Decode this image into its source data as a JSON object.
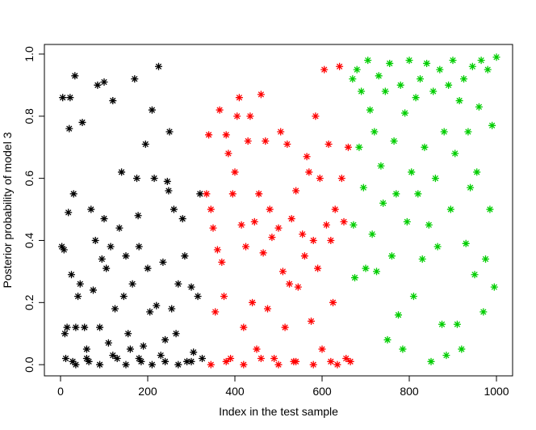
{
  "chart_data": {
    "type": "scatter",
    "x_label": "Index in the test sample",
    "y_label": "Posterior probability of model 3",
    "xlim": [
      -37,
      1037
    ],
    "ylim": [
      -0.036,
      1.031
    ],
    "xticks": [
      0,
      200,
      400,
      600,
      800,
      1000
    ],
    "yticks": [
      {
        "value": 0,
        "label": "0.0"
      },
      0.2,
      0.4,
      0.6,
      0.8,
      {
        "value": 1,
        "label": "1.0"
      }
    ],
    "series": [
      {
        "color": "#000000",
        "x": [
          3,
          5,
          8,
          10,
          12,
          15,
          18,
          20,
          22,
          25,
          28,
          30,
          33,
          35,
          40,
          45,
          50,
          55,
          60,
          65,
          70,
          75,
          80,
          85,
          90,
          95,
          100,
          100,
          105,
          110,
          115,
          120,
          125,
          130,
          135,
          140,
          145,
          150,
          155,
          160,
          165,
          170,
          175,
          178,
          180,
          185,
          190,
          195,
          200,
          205,
          210,
          215,
          220,
          225,
          230,
          235,
          240,
          245,
          248,
          250,
          255,
          260,
          265,
          270,
          280,
          285,
          290,
          300,
          305,
          315,
          320,
          325,
          35,
          60,
          90,
          120,
          150,
          180,
          210,
          240,
          270,
          300
        ],
        "y": [
          0.38,
          0.86,
          0.37,
          0.1,
          0.02,
          0.12,
          0.49,
          0.76,
          0.86,
          0.29,
          0.01,
          0.55,
          0.93,
          0.12,
          0.22,
          0.26,
          0.78,
          0.12,
          0.05,
          0.01,
          0.5,
          0.24,
          0.4,
          0.9,
          0.12,
          0.34,
          0.91,
          0.47,
          0.31,
          0.07,
          0.38,
          0.85,
          0.18,
          0.02,
          0.44,
          0.62,
          0.22,
          0.35,
          0.1,
          0.05,
          0.26,
          0.92,
          0.6,
          0.48,
          0.38,
          0.01,
          0.06,
          0.71,
          0.31,
          0.17,
          0.82,
          0.6,
          0.19,
          0.96,
          0.03,
          0.33,
          0.08,
          0.59,
          0.56,
          0.75,
          0.18,
          0.5,
          0.1,
          0.26,
          0.47,
          0.35,
          0.01,
          0.25,
          0.04,
          0.22,
          0.55,
          0.02,
          0.0,
          0.02,
          0.0,
          0.03,
          0.0,
          0.02,
          0.0,
          0.01,
          0.0,
          0.01
        ]
      },
      {
        "color": "#ff0000",
        "x": [
          335,
          340,
          345,
          350,
          355,
          360,
          365,
          370,
          375,
          380,
          385,
          390,
          395,
          400,
          405,
          410,
          415,
          420,
          425,
          430,
          435,
          440,
          445,
          450,
          455,
          460,
          465,
          470,
          475,
          480,
          485,
          490,
          500,
          505,
          510,
          515,
          520,
          525,
          530,
          535,
          540,
          545,
          555,
          560,
          565,
          570,
          575,
          580,
          585,
          590,
          595,
          600,
          605,
          610,
          615,
          620,
          625,
          630,
          635,
          640,
          645,
          650,
          655,
          660,
          665,
          345,
          380,
          420,
          460,
          500,
          540,
          580,
          620
        ],
        "y": [
          0.55,
          0.74,
          0.5,
          0.44,
          0.17,
          0.37,
          0.82,
          0.33,
          0.22,
          0.74,
          0.68,
          0.02,
          0.55,
          0.62,
          0.8,
          0.86,
          0.45,
          0.12,
          0.38,
          0.72,
          0.8,
          0.2,
          0.46,
          0.05,
          0.55,
          0.87,
          0.36,
          0.72,
          0.18,
          0.5,
          0.41,
          0.02,
          0.44,
          0.75,
          0.3,
          0.12,
          0.71,
          0.26,
          0.47,
          0.01,
          0.56,
          0.25,
          0.42,
          0.35,
          0.67,
          0.62,
          0.14,
          0.4,
          0.8,
          0.31,
          0.6,
          0.05,
          0.95,
          0.45,
          0.71,
          0.4,
          0.2,
          0.5,
          0.0,
          0.96,
          0.6,
          0.46,
          0.02,
          0.7,
          0.01,
          0.0,
          0.01,
          0.0,
          0.02,
          0.0,
          0.01,
          0.0,
          0.01
        ]
      },
      {
        "color": "#00cd00",
        "x": [
          670,
          672,
          675,
          680,
          685,
          690,
          695,
          700,
          705,
          710,
          715,
          720,
          725,
          730,
          735,
          740,
          745,
          750,
          755,
          760,
          765,
          770,
          775,
          780,
          785,
          790,
          795,
          800,
          805,
          810,
          815,
          820,
          825,
          830,
          835,
          840,
          845,
          850,
          855,
          860,
          865,
          870,
          875,
          880,
          885,
          890,
          895,
          900,
          905,
          910,
          915,
          920,
          925,
          930,
          935,
          940,
          945,
          950,
          955,
          960,
          965,
          970,
          975,
          980,
          985,
          990,
          995,
          1000
        ],
        "y": [
          0.92,
          0.45,
          0.28,
          0.95,
          0.7,
          0.88,
          0.57,
          0.31,
          0.98,
          0.82,
          0.42,
          0.75,
          0.3,
          0.93,
          0.64,
          0.52,
          0.88,
          0.08,
          0.97,
          0.35,
          0.72,
          0.55,
          0.16,
          0.9,
          0.05,
          0.81,
          0.46,
          0.98,
          0.62,
          0.22,
          0.86,
          0.55,
          0.92,
          0.34,
          0.7,
          0.97,
          0.45,
          0.01,
          0.88,
          0.6,
          0.38,
          0.95,
          0.13,
          0.75,
          0.03,
          0.9,
          0.5,
          0.98,
          0.68,
          0.13,
          0.85,
          0.05,
          0.92,
          0.39,
          0.75,
          0.57,
          0.96,
          0.29,
          0.62,
          0.83,
          0.98,
          0.17,
          0.34,
          0.95,
          0.5,
          0.77,
          0.25,
          0.99
        ]
      }
    ]
  }
}
